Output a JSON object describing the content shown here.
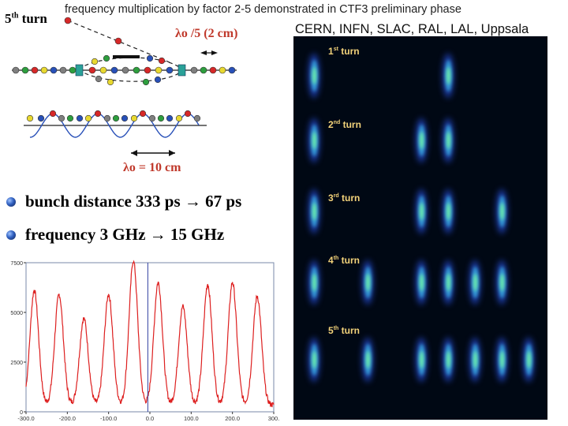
{
  "header": {
    "title": "frequency multiplication by factor 2-5 demonstrated in CTF3 preliminary phase",
    "collaboration": "CERN, INFN, SLAC, RAL, LAL, Uppsala"
  },
  "diagram": {
    "turn_label_main": "5",
    "turn_label_sup": "th",
    "turn_label_word": "turn",
    "lambda_fifth": "λo /5 (2 cm)",
    "lambda_full": "λo = 10 cm",
    "bunch_colors": [
      "#d62828",
      "#7f7f7f",
      "#e8d830",
      "#2e9e3e",
      "#2850b8"
    ],
    "cavity_color": "#2aa198",
    "wave_color": "#2850b8"
  },
  "bullets": [
    {
      "text": "bunch distance 333 ps → 67 ps"
    },
    {
      "text": "frequency 3 GHz → 15 GHz"
    }
  ],
  "chart_data": {
    "type": "line",
    "title": "",
    "xlabel": "",
    "ylabel": "",
    "xlim": [
      -300,
      300
    ],
    "ylim": [
      0,
      7500
    ],
    "x_ticks": [
      {
        "value": -300,
        "label": "-300.0"
      },
      {
        "value": -200,
        "label": "-200.0"
      },
      {
        "value": -100,
        "label": "-100.0"
      },
      {
        "value": 0,
        "label": "0.0"
      },
      {
        "value": 100,
        "label": "100.0"
      },
      {
        "value": 200,
        "label": "200.0"
      },
      {
        "value": 300,
        "label": "300."
      }
    ],
    "y_ticks": [
      {
        "value": 0,
        "label": "0"
      },
      {
        "value": 2500,
        "label": "2500"
      },
      {
        "value": 5000,
        "label": "5000"
      },
      {
        "value": 7500,
        "label": "7500"
      }
    ],
    "baseline": 350,
    "peak_width": 14,
    "peaks": [
      {
        "x": -280,
        "y": 6100
      },
      {
        "x": -220,
        "y": 5900
      },
      {
        "x": -160,
        "y": 4700
      },
      {
        "x": -100,
        "y": 5900
      },
      {
        "x": -40,
        "y": 7600
      },
      {
        "x": 20,
        "y": 6500
      },
      {
        "x": 80,
        "y": 5300
      },
      {
        "x": 140,
        "y": 6400
      },
      {
        "x": 200,
        "y": 6500
      },
      {
        "x": 260,
        "y": 5800
      }
    ],
    "marker_x": -5,
    "line_color": "#dd1f1f",
    "marker_color": "#3040a0"
  },
  "beam_image": {
    "turns": [
      {
        "num": "1",
        "sup": "st",
        "word": "turn"
      },
      {
        "num": "2",
        "sup": "nd",
        "word": "turn"
      },
      {
        "num": "3",
        "sup": "rd",
        "word": "turn"
      },
      {
        "num": "4",
        "sup": "th",
        "word": "turn"
      },
      {
        "num": "5",
        "sup": "th",
        "word": "turn"
      }
    ]
  }
}
